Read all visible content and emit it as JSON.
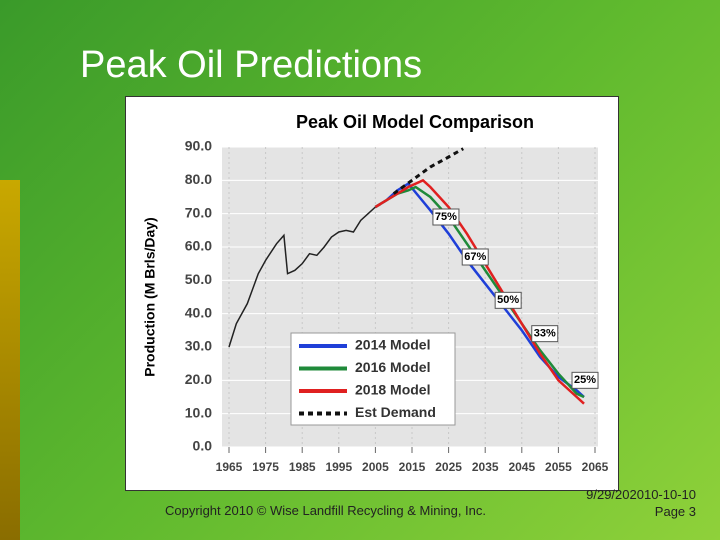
{
  "slide": {
    "title": "Peak Oil Predictions",
    "footer": "Copyright 2010 © Wise Landfill Recycling & Mining, Inc.",
    "date": "9/29/202010-10-10",
    "page": "Page 3"
  },
  "chart_data": {
    "type": "line",
    "title": "Peak Oil Model Comparison",
    "y_label": "Production (M Brls/Day)",
    "xlim": [
      1965,
      2065
    ],
    "xticks": [
      1965,
      1975,
      1985,
      1995,
      2005,
      2015,
      2025,
      2035,
      2045,
      2055,
      2065
    ],
    "ylim": [
      0,
      90
    ],
    "yticks": [
      {
        "value": 0,
        "label": "0.0"
      },
      {
        "value": 10,
        "label": "10.0"
      },
      {
        "value": 20,
        "label": "20.0"
      },
      {
        "value": 30,
        "label": "30.0"
      },
      {
        "value": 40,
        "label": "40.0"
      },
      {
        "value": 50,
        "label": "50.0"
      },
      {
        "value": 60,
        "label": "60.0"
      },
      {
        "value": 70,
        "label": "70.0"
      },
      {
        "value": 80,
        "label": "80.0"
      },
      {
        "value": 90,
        "label": "90.0"
      }
    ],
    "grid": true,
    "legend": "lower-left",
    "annotations": [
      "75%",
      "67%",
      "50%",
      "33%",
      "25%"
    ],
    "series": [
      {
        "color": "#222222",
        "x": [
          1965,
          1967,
          1970,
          1973,
          1975,
          1978,
          1980,
          1981,
          1983,
          1985,
          1987,
          1989,
          1991,
          1993,
          1995,
          1997,
          1999,
          2001,
          2003,
          2005
        ],
        "values": [
          30,
          37,
          43,
          52,
          56,
          61,
          63.5,
          52,
          53,
          55,
          58,
          57.5,
          60,
          63,
          64.5,
          65,
          64.5,
          68,
          70,
          72
        ]
      },
      {
        "name": "2014 Model",
        "color": "#1f3fd8",
        "x": [
          2005,
          2008,
          2011,
          2014,
          2017,
          2020,
          2025,
          2030,
          2035,
          2040,
          2045,
          2050,
          2055,
          2060,
          2062
        ],
        "values": [
          72,
          74,
          77,
          79,
          75,
          71,
          64,
          56,
          49,
          42,
          35,
          27,
          21,
          17,
          15
        ]
      },
      {
        "name": "2016 Model",
        "color": "#1f8a3a",
        "x": [
          2005,
          2008,
          2011,
          2014,
          2016,
          2020,
          2025,
          2030,
          2035,
          2040,
          2045,
          2050,
          2055,
          2060,
          2062
        ],
        "values": [
          72,
          74,
          76,
          77,
          78,
          75,
          69,
          61,
          53,
          45,
          37,
          29,
          22,
          16,
          15
        ]
      },
      {
        "name": "2018 Model",
        "color": "#e02020",
        "x": [
          2005,
          2008,
          2011,
          2014,
          2018,
          2020,
          2025,
          2030,
          2035,
          2040,
          2045,
          2050,
          2055,
          2060,
          2062
        ],
        "values": [
          72,
          74,
          76,
          78,
          80,
          78,
          72,
          64,
          55,
          46,
          37,
          28,
          20,
          15,
          13
        ]
      },
      {
        "name": "Est Demand",
        "color": "#111111",
        "dash": true,
        "x": [
          2010,
          2015,
          2020,
          2025,
          2029
        ],
        "values": [
          76,
          80,
          84,
          87,
          89.5
        ]
      }
    ]
  }
}
